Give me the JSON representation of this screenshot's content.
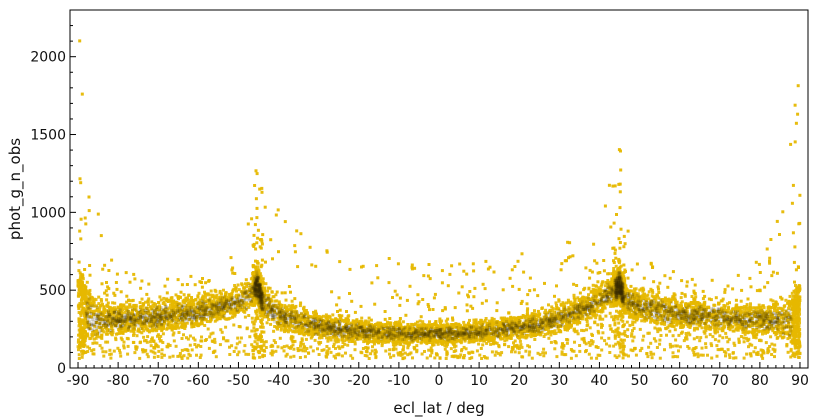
{
  "chart_data": {
    "type": "scatter",
    "title": "",
    "xlabel": "ecl_lat / deg",
    "ylabel": "phot_g_n_obs",
    "xlim": [
      -92,
      92
    ],
    "ylim": [
      0,
      2300
    ],
    "x_ticks": [
      -90,
      -80,
      -70,
      -60,
      -50,
      -40,
      -30,
      -20,
      -10,
      0,
      10,
      20,
      30,
      40,
      50,
      60,
      70,
      80,
      90
    ],
    "y_ticks": [
      0,
      500,
      1000,
      1500,
      2000
    ],
    "grid": false,
    "legend": "none",
    "marker_color": "#E6B800",
    "dense_color": "#3A2E00",
    "envelope": {
      "x": [
        -90,
        -89,
        -88,
        -87,
        -86,
        -85,
        -84,
        -82,
        -80,
        -75,
        -70,
        -60,
        -50,
        -47,
        -45.5,
        -45,
        -44,
        -42,
        -40,
        -35,
        -32,
        -30,
        -25,
        -22,
        -20,
        -15,
        -13,
        -10,
        -5,
        0,
        5,
        6,
        8,
        10,
        13,
        15,
        20,
        23,
        25,
        30,
        32,
        35,
        38,
        40,
        42,
        44,
        45,
        45.5,
        47,
        50,
        60,
        70,
        75,
        80,
        82,
        84,
        86,
        87,
        88,
        89,
        90
      ],
      "max": [
        2250,
        2050,
        1800,
        1500,
        1250,
        1050,
        900,
        750,
        650,
        590,
        570,
        610,
        760,
        1000,
        1400,
        1330,
        1150,
        1100,
        1050,
        900,
        840,
        820,
        770,
        760,
        700,
        700,
        740,
        680,
        690,
        690,
        650,
        790,
        700,
        700,
        760,
        700,
        720,
        800,
        720,
        820,
        900,
        950,
        1000,
        1050,
        1150,
        1300,
        1450,
        1350,
        1000,
        750,
        600,
        580,
        600,
        700,
        780,
        900,
        1150,
        1400,
        1700,
        2000,
        2150
      ],
      "dense_low": [
        120,
        140,
        160,
        170,
        180,
        190,
        200,
        210,
        220,
        230,
        240,
        270,
        330,
        380,
        420,
        400,
        330,
        280,
        250,
        220,
        200,
        190,
        180,
        170,
        165,
        160,
        160,
        160,
        160,
        160,
        160,
        160,
        165,
        170,
        175,
        180,
        190,
        200,
        210,
        230,
        250,
        280,
        320,
        350,
        380,
        400,
        420,
        380,
        330,
        300,
        260,
        240,
        230,
        220,
        210,
        200,
        190,
        180,
        160,
        140,
        120
      ],
      "dense_high": [
        600,
        560,
        520,
        480,
        450,
        430,
        410,
        400,
        400,
        410,
        420,
        450,
        500,
        560,
        650,
        620,
        520,
        470,
        430,
        380,
        350,
        340,
        320,
        310,
        300,
        290,
        290,
        280,
        280,
        280,
        280,
        280,
        285,
        290,
        300,
        310,
        330,
        340,
        360,
        400,
        420,
        450,
        490,
        520,
        560,
        600,
        650,
        600,
        520,
        480,
        430,
        410,
        400,
        400,
        400,
        410,
        420,
        430,
        460,
        500,
        560
      ],
      "min": [
        60,
        60,
        60,
        60,
        60,
        60,
        60,
        60,
        60,
        60,
        60,
        60,
        60,
        60,
        60,
        60,
        60,
        60,
        60,
        60,
        60,
        60,
        60,
        60,
        60,
        60,
        60,
        60,
        60,
        60,
        60,
        60,
        60,
        60,
        60,
        60,
        60,
        60,
        60,
        60,
        60,
        60,
        60,
        60,
        60,
        60,
        60,
        60,
        60,
        60,
        60,
        60,
        60,
        60,
        60,
        60,
        60,
        60,
        60,
        60,
        60
      ]
    }
  }
}
